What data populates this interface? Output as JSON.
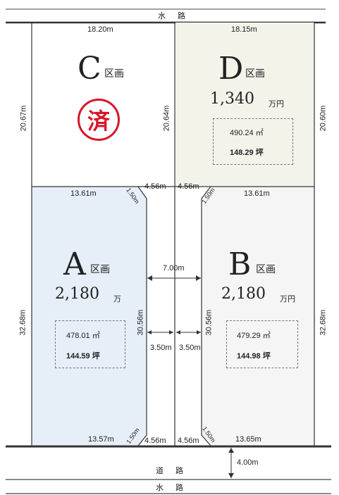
{
  "roads": {
    "top_canal": "水　路",
    "road": "道　路",
    "bottom_canal": "水　路",
    "road_width": "4.00m"
  },
  "lots": {
    "C": {
      "letter": "C",
      "kuku": "区画",
      "stamp": "済",
      "top": "18.20m",
      "left": "20.67m",
      "right": "20.64m"
    },
    "D": {
      "letter": "D",
      "kuku": "区画",
      "price": "1,340",
      "price_unit": "万円",
      "area_m2": "490.24 ㎡",
      "area_tsubo": "148.29 坪",
      "top": "18.15m",
      "right": "20.60m"
    },
    "A": {
      "letter": "A",
      "kuku": "区画",
      "price": "2,180",
      "price_unit": "万",
      "area_m2": "478.01 ㎡",
      "area_tsubo": "144.59 坪",
      "top": "13.61m",
      "left": "32.68m",
      "right": "30.56m",
      "bottom": "13.57m",
      "corner_top": "1.50m",
      "corner_bottom": "1.50m"
    },
    "B": {
      "letter": "B",
      "kuku": "区画",
      "price": "2,180",
      "price_unit": "万円",
      "area_m2": "479.29 ㎡",
      "area_tsubo": "144.98 坪",
      "top": "13.61m",
      "left": "30.56m",
      "right": "32.68m",
      "bottom": "13.65m",
      "corner_top": "1.50m",
      "corner_bottom": "1.50m"
    }
  },
  "driveway": {
    "width": "7.00m",
    "half_left": "3.50m",
    "half_right": "3.50m",
    "top_left": "4.56m",
    "top_right": "4.56m",
    "bottom_left": "4.56m",
    "bottom_right": "4.56m"
  },
  "colors": {
    "lot_a_fill": "#e6eff7",
    "lot_d_fill": "#f3f3ea",
    "lot_b_fill": "#f5f5f5",
    "stamp": "#d8152a",
    "line": "#333333"
  }
}
